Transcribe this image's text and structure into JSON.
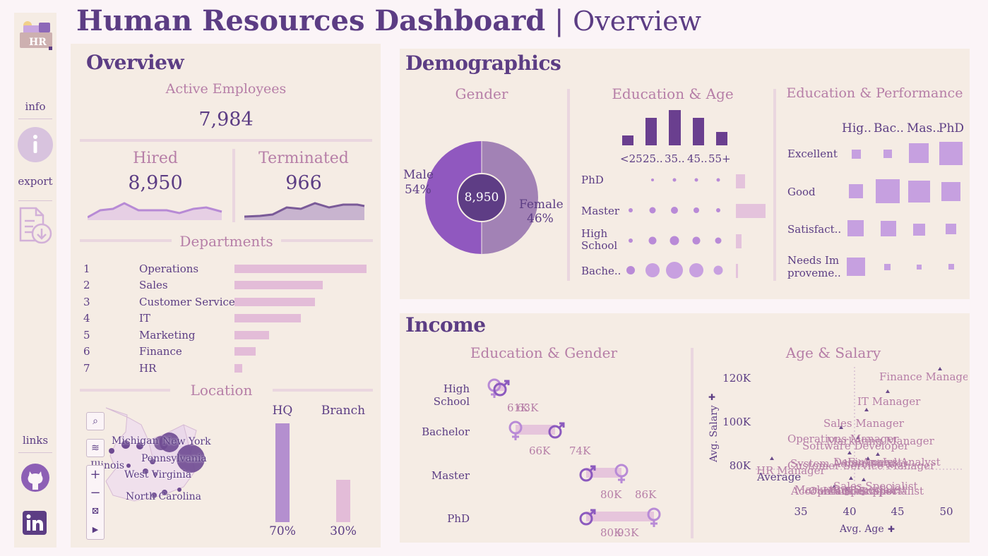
{
  "header": {
    "title_bold": "Human Resources Dashboard",
    "separator": "|",
    "title_light": "Overview"
  },
  "sidebar": {
    "logo_text": "HR",
    "info_label": "info",
    "export_label": "export",
    "links_label": "links",
    "icons": [
      "info-icon",
      "export-file-icon",
      "github-icon",
      "linkedin-icon"
    ]
  },
  "overview": {
    "title": "Overview",
    "active_label": "Active Employees",
    "active_value": "7,984",
    "hired_label": "Hired",
    "hired_value": "8,950",
    "terminated_label": "Terminated",
    "terminated_value": "966",
    "departments_label": "Departments",
    "departments": [
      {
        "rank": "1",
        "name": "Operations",
        "share": 1.0
      },
      {
        "rank": "2",
        "name": "Sales",
        "share": 0.67
      },
      {
        "rank": "3",
        "name": "Customer Service",
        "share": 0.61
      },
      {
        "rank": "4",
        "name": "IT",
        "share": 0.5
      },
      {
        "rank": "5",
        "name": "Marketing",
        "share": 0.26
      },
      {
        "rank": "6",
        "name": "Finance",
        "share": 0.16
      },
      {
        "rank": "7",
        "name": "HR",
        "share": 0.06
      }
    ],
    "location_label": "Location",
    "states": [
      "Michigan",
      "New York",
      "Illinois",
      "Pennsylvania",
      "West Virginia",
      "North Carolina"
    ],
    "hq_label": "HQ",
    "branch_label": "Branch",
    "hq_pct": "70%",
    "branch_pct": "30%",
    "hq_share": 0.7,
    "branch_share": 0.3
  },
  "demographics": {
    "title": "Demographics",
    "gender_title": "Gender",
    "male_label": "Male",
    "male_pct": "54%",
    "female_label": "Female",
    "female_pct": "46%",
    "gender_total": "8,950",
    "edu_age_title": "Education & Age",
    "age_groups": [
      "<25",
      "25..",
      "35..",
      "45..",
      "55+"
    ],
    "education_levels": [
      "PhD",
      "Master",
      "High School",
      "Bache.."
    ],
    "edu_perf_title": "Education & Performance",
    "edu_cols": [
      "Hig..",
      "Bac..",
      "Mas..",
      "PhD"
    ],
    "perf_rows": [
      "Excellent",
      "Good",
      "Satisfact..",
      "Needs Im proveme.."
    ]
  },
  "income": {
    "title": "Income",
    "edu_gender_title": "Education & Gender",
    "rows": [
      {
        "label": "High School",
        "a": "61K",
        "b": "63K"
      },
      {
        "label": "Bachelor",
        "a": "66K",
        "b": "74K"
      },
      {
        "label": "Master",
        "a": "80K",
        "b": "86K"
      },
      {
        "label": "PhD",
        "a": "80K",
        "b": "93K"
      }
    ],
    "age_salary_title": "Age & Salary",
    "y_axis_label": "Avg. Salary",
    "x_axis_label": "Avg. Age",
    "y_ticks": [
      "120K",
      "100K",
      "80K"
    ],
    "x_ticks": [
      "35",
      "40",
      "45",
      "50"
    ],
    "average_label": "Average",
    "job_labels": [
      "Finance Manager",
      "IT Manager",
      "Sales Manager",
      "Operations Manager",
      "Marketing Manager",
      "Software Developer",
      "Customer Service Manager",
      "System Administrator",
      "Data Analyst",
      "Financial Analyst",
      "HR Manager",
      "Sales Specialist",
      "Marketing Specialist",
      "Accountant",
      "HR Specialist",
      "Operations Specialist",
      "IT Support"
    ]
  }
}
